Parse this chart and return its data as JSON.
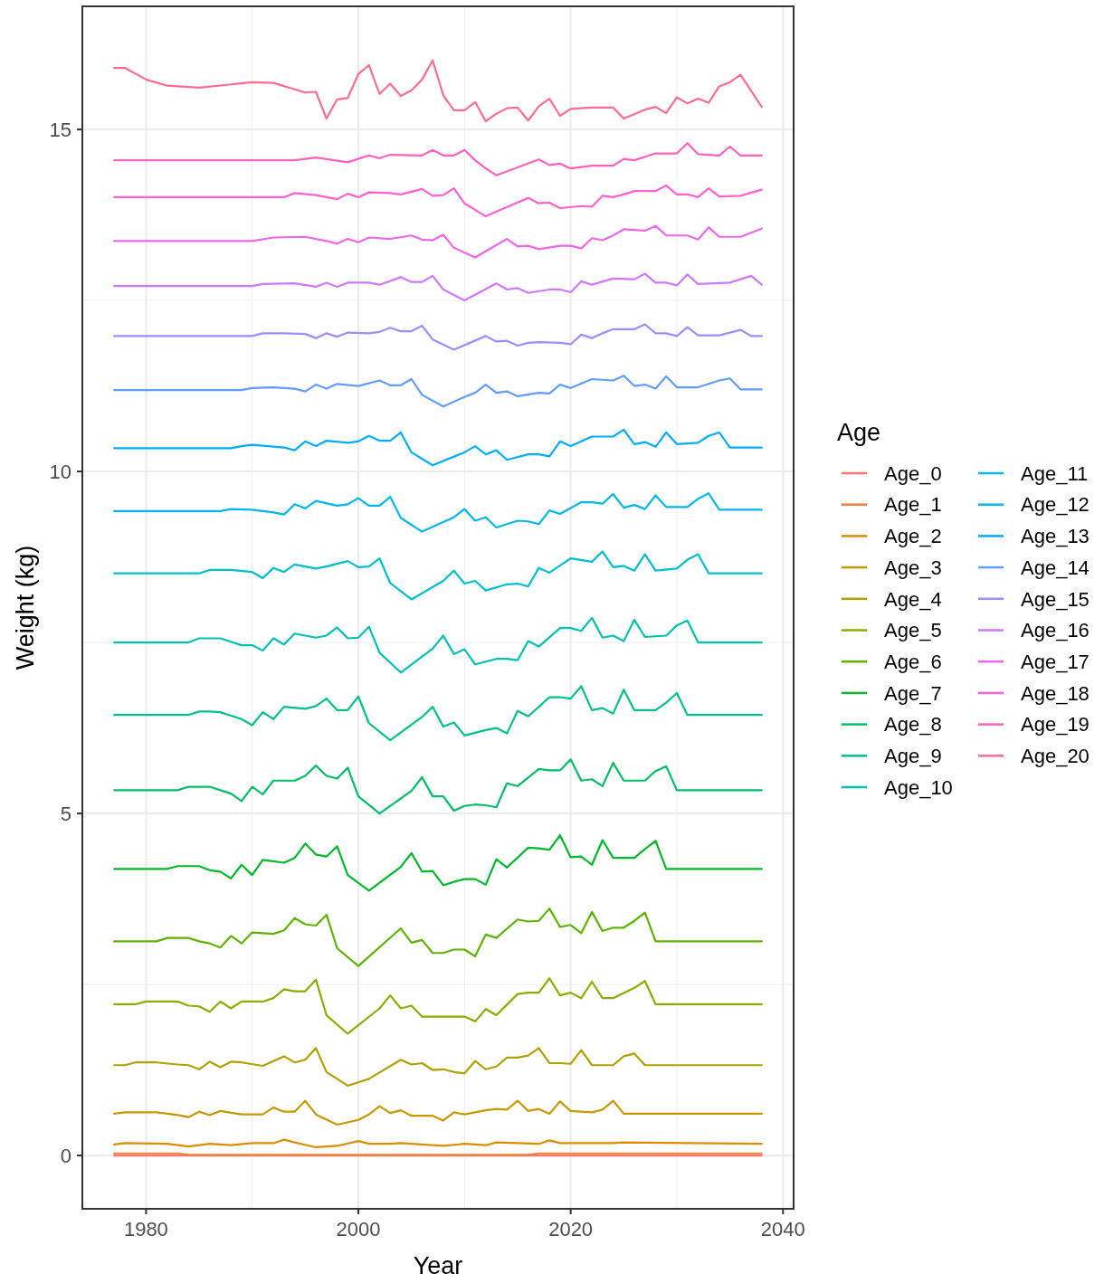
{
  "chart_data": {
    "type": "line",
    "xlabel": "Year",
    "ylabel": "Weight (kg)",
    "legend_title": "Age",
    "legend": "right",
    "grid": true,
    "xlim": [
      1974,
      2041
    ],
    "ylim": [
      -0.78,
      16.8
    ],
    "xticks": [
      1980,
      2000,
      2020,
      2040
    ],
    "yticks": [
      0,
      5,
      10,
      15
    ],
    "series": [
      {
        "name": "Age_0",
        "color": "#F8766D",
        "x": [
          1977,
          2038
        ],
        "values": [
          0,
          0
        ]
      },
      {
        "name": "Age_1",
        "color": "#EC823C",
        "x": [
          1977,
          1983,
          1984,
          2016,
          2017,
          2038
        ],
        "values": [
          0.03,
          0.03,
          0.01,
          0.01,
          0.03,
          0.03
        ]
      },
      {
        "name": "Age_2",
        "color": "#DC8D00",
        "x": [
          1977,
          1978,
          1982,
          1984,
          1986,
          1988,
          1990,
          1992,
          1993,
          1994,
          1996,
          1998,
          2000,
          2001,
          2003,
          2004,
          2006,
          2008,
          2010,
          2012,
          2013,
          2015,
          2017,
          2018,
          2019,
          2024,
          2025,
          2038
        ],
        "values": [
          0.16,
          0.18,
          0.17,
          0.13,
          0.17,
          0.15,
          0.18,
          0.18,
          0.23,
          0.19,
          0.12,
          0.14,
          0.21,
          0.17,
          0.17,
          0.18,
          0.16,
          0.14,
          0.17,
          0.15,
          0.19,
          0.18,
          0.17,
          0.22,
          0.18,
          0.18,
          0.19,
          0.17
        ]
      },
      {
        "name": "Age_3",
        "color": "#C89800",
        "x": [
          1977,
          1978,
          1981,
          1983,
          1984,
          1985,
          1986,
          1987,
          1989,
          1991,
          1992,
          1993,
          1994,
          1995,
          1996,
          1998,
          2000,
          2001,
          2002,
          2003,
          2004,
          2005,
          2007,
          2008,
          2009,
          2010,
          2012,
          2013,
          2014,
          2015,
          2016,
          2017,
          2018,
          2019,
          2020,
          2022,
          2023,
          2024,
          2025,
          2038
        ],
        "values": [
          0.61,
          0.63,
          0.63,
          0.59,
          0.56,
          0.64,
          0.59,
          0.65,
          0.6,
          0.6,
          0.7,
          0.64,
          0.64,
          0.8,
          0.6,
          0.45,
          0.52,
          0.6,
          0.72,
          0.62,
          0.66,
          0.58,
          0.58,
          0.51,
          0.63,
          0.6,
          0.66,
          0.68,
          0.67,
          0.8,
          0.65,
          0.68,
          0.61,
          0.79,
          0.65,
          0.63,
          0.67,
          0.8,
          0.61,
          0.61
        ]
      },
      {
        "name": "Age_4",
        "color": "#B0A100",
        "x": [
          1977,
          1978,
          1979,
          1981,
          1983,
          1984,
          1985,
          1986,
          1987,
          1988,
          1989,
          1991,
          1992,
          1993,
          1994,
          1995,
          1996,
          1997,
          1999,
          2001,
          2004,
          2005,
          2006,
          2007,
          2008,
          2009,
          2010,
          2011,
          2012,
          2013,
          2014,
          2015,
          2016,
          2017,
          2018,
          2019,
          2020,
          2021,
          2022,
          2024,
          2025,
          2026,
          2027,
          2038
        ],
        "values": [
          1.32,
          1.32,
          1.36,
          1.36,
          1.33,
          1.32,
          1.26,
          1.37,
          1.29,
          1.37,
          1.36,
          1.31,
          1.38,
          1.45,
          1.36,
          1.4,
          1.57,
          1.22,
          1.02,
          1.12,
          1.4,
          1.33,
          1.35,
          1.25,
          1.26,
          1.22,
          1.2,
          1.38,
          1.26,
          1.3,
          1.43,
          1.43,
          1.46,
          1.57,
          1.35,
          1.35,
          1.34,
          1.54,
          1.32,
          1.32,
          1.45,
          1.49,
          1.32,
          1.32
        ]
      },
      {
        "name": "Age_5",
        "color": "#8FAA00",
        "x": [
          1977,
          1979,
          1980,
          1983,
          1984,
          1985,
          1986,
          1987,
          1988,
          1989,
          1991,
          1992,
          1993,
          1994,
          1995,
          1996,
          1997,
          1999,
          2002,
          2003,
          2004,
          2005,
          2006,
          2010,
          2011,
          2012,
          2013,
          2015,
          2016,
          2017,
          2018,
          2019,
          2020,
          2021,
          2022,
          2023,
          2024,
          2026,
          2027,
          2028,
          2038
        ],
        "values": [
          2.21,
          2.21,
          2.25,
          2.25,
          2.19,
          2.18,
          2.1,
          2.25,
          2.15,
          2.25,
          2.25,
          2.3,
          2.43,
          2.4,
          2.4,
          2.57,
          2.05,
          1.78,
          2.15,
          2.34,
          2.15,
          2.19,
          2.03,
          2.03,
          1.96,
          2.14,
          2.05,
          2.36,
          2.38,
          2.38,
          2.59,
          2.34,
          2.38,
          2.3,
          2.54,
          2.3,
          2.3,
          2.45,
          2.55,
          2.21,
          2.21
        ]
      },
      {
        "name": "Age_6",
        "color": "#5EB300",
        "x": [
          1977,
          1981,
          1982,
          1984,
          1985,
          1986,
          1987,
          1988,
          1989,
          1990,
          1992,
          1993,
          1994,
          1995,
          1996,
          1997,
          1998,
          2000,
          2004,
          2005,
          2006,
          2007,
          2008,
          2009,
          2010,
          2011,
          2012,
          2013,
          2015,
          2016,
          2017,
          2018,
          2019,
          2020,
          2021,
          2022,
          2023,
          2024,
          2025,
          2026,
          2027,
          2028,
          2038
        ],
        "values": [
          3.13,
          3.13,
          3.18,
          3.18,
          3.13,
          3.1,
          3.04,
          3.21,
          3.1,
          3.26,
          3.24,
          3.29,
          3.47,
          3.38,
          3.36,
          3.52,
          3.03,
          2.77,
          3.32,
          3.11,
          3.15,
          2.96,
          2.96,
          3.01,
          3.01,
          2.91,
          3.23,
          3.18,
          3.45,
          3.42,
          3.43,
          3.61,
          3.34,
          3.37,
          3.25,
          3.56,
          3.28,
          3.33,
          3.33,
          3.43,
          3.55,
          3.13,
          3.13
        ]
      },
      {
        "name": "Age_7",
        "color": "#00B92A",
        "x": [
          1977,
          1982,
          1983,
          1985,
          1986,
          1987,
          1988,
          1989,
          1990,
          1991,
          1993,
          1994,
          1995,
          1996,
          1997,
          1998,
          1999,
          2001,
          2004,
          2005,
          2006,
          2007,
          2008,
          2009,
          2010,
          2011,
          2012,
          2013,
          2014,
          2016,
          2017,
          2018,
          2019,
          2020,
          2021,
          2022,
          2023,
          2024,
          2026,
          2027,
          2028,
          2029,
          2038
        ],
        "values": [
          4.19,
          4.19,
          4.23,
          4.23,
          4.17,
          4.15,
          4.05,
          4.25,
          4.1,
          4.32,
          4.28,
          4.35,
          4.56,
          4.4,
          4.37,
          4.52,
          4.1,
          3.87,
          4.22,
          4.42,
          4.15,
          4.16,
          3.95,
          4.0,
          4.04,
          4.04,
          3.96,
          4.33,
          4.21,
          4.5,
          4.49,
          4.47,
          4.68,
          4.36,
          4.37,
          4.25,
          4.61,
          4.35,
          4.35,
          4.48,
          4.6,
          4.19,
          4.19
        ]
      },
      {
        "name": "Age_8",
        "color": "#00BE67",
        "x": [
          1977,
          1983,
          1984,
          1986,
          1988,
          1989,
          1990,
          1991,
          1992,
          1994,
          1995,
          1996,
          1997,
          1998,
          1999,
          2000,
          2002,
          2005,
          2006,
          2007,
          2008,
          2009,
          2010,
          2011,
          2012,
          2013,
          2014,
          2015,
          2017,
          2018,
          2019,
          2020,
          2021,
          2022,
          2023,
          2024,
          2025,
          2027,
          2028,
          2029,
          2030,
          2038
        ],
        "values": [
          5.34,
          5.34,
          5.39,
          5.39,
          5.29,
          5.18,
          5.39,
          5.28,
          5.48,
          5.48,
          5.55,
          5.7,
          5.55,
          5.51,
          5.67,
          5.25,
          5.0,
          5.33,
          5.53,
          5.25,
          5.25,
          5.04,
          5.11,
          5.13,
          5.12,
          5.09,
          5.44,
          5.4,
          5.65,
          5.63,
          5.63,
          5.79,
          5.48,
          5.5,
          5.4,
          5.74,
          5.48,
          5.48,
          5.62,
          5.69,
          5.34,
          5.34
        ]
      },
      {
        "name": "Age_9",
        "color": "#00C08E",
        "x": [
          1977,
          1984,
          1985,
          1986,
          1987,
          1988,
          1989,
          1990,
          1991,
          1992,
          1993,
          1995,
          1996,
          1997,
          1998,
          1999,
          2000,
          2001,
          2003,
          2006,
          2007,
          2008,
          2009,
          2010,
          2012,
          2013,
          2014,
          2015,
          2016,
          2018,
          2019,
          2020,
          2021,
          2022,
          2023,
          2024,
          2025,
          2026,
          2028,
          2029,
          2030,
          2031,
          2038
        ],
        "values": [
          6.44,
          6.44,
          6.49,
          6.49,
          6.48,
          6.43,
          6.38,
          6.29,
          6.48,
          6.38,
          6.56,
          6.53,
          6.57,
          6.68,
          6.51,
          6.51,
          6.71,
          6.32,
          6.07,
          6.41,
          6.56,
          6.27,
          6.33,
          6.14,
          6.22,
          6.25,
          6.17,
          6.5,
          6.42,
          6.7,
          6.7,
          6.68,
          6.86,
          6.51,
          6.54,
          6.46,
          6.81,
          6.51,
          6.51,
          6.62,
          6.76,
          6.44,
          6.44
        ]
      },
      {
        "name": "Age_10",
        "color": "#00C1B0",
        "x": [
          1977,
          1984,
          1985,
          1987,
          1988,
          1989,
          1990,
          1991,
          1992,
          1993,
          1994,
          1996,
          1997,
          1998,
          1999,
          2000,
          2001,
          2002,
          2004,
          2007,
          2008,
          2009,
          2010,
          2011,
          2013,
          2014,
          2015,
          2016,
          2017,
          2019,
          2020,
          2021,
          2022,
          2023,
          2024,
          2025,
          2026,
          2027,
          2029,
          2030,
          2031,
          2032,
          2038
        ],
        "values": [
          7.5,
          7.5,
          7.56,
          7.56,
          7.51,
          7.46,
          7.46,
          7.38,
          7.56,
          7.47,
          7.63,
          7.57,
          7.6,
          7.72,
          7.56,
          7.57,
          7.73,
          7.35,
          7.06,
          7.41,
          7.6,
          7.33,
          7.4,
          7.18,
          7.26,
          7.26,
          7.24,
          7.52,
          7.44,
          7.71,
          7.71,
          7.67,
          7.86,
          7.57,
          7.6,
          7.52,
          7.83,
          7.58,
          7.6,
          7.75,
          7.82,
          7.5,
          7.5
        ]
      },
      {
        "name": "Age_11",
        "color": "#00BECF",
        "x": [
          1977,
          1985,
          1986,
          1988,
          1990,
          1991,
          1992,
          1993,
          1994,
          1996,
          1997,
          1999,
          2000,
          2001,
          2002,
          2003,
          2005,
          2008,
          2009,
          2010,
          2011,
          2012,
          2014,
          2015,
          2016,
          2017,
          2018,
          2020,
          2022,
          2023,
          2024,
          2025,
          2026,
          2027,
          2028,
          2030,
          2031,
          2032,
          2033,
          2038
        ],
        "values": [
          8.51,
          8.51,
          8.56,
          8.56,
          8.53,
          8.44,
          8.59,
          8.53,
          8.64,
          8.58,
          8.61,
          8.69,
          8.6,
          8.61,
          8.73,
          8.37,
          8.13,
          8.4,
          8.55,
          8.36,
          8.4,
          8.26,
          8.35,
          8.36,
          8.32,
          8.59,
          8.52,
          8.73,
          8.68,
          8.83,
          8.6,
          8.62,
          8.55,
          8.79,
          8.55,
          8.58,
          8.71,
          8.79,
          8.51,
          8.51
        ]
      },
      {
        "name": "Age_12",
        "color": "#00B8E7",
        "x": [
          1977,
          1987,
          1988,
          1990,
          1992,
          1993,
          1994,
          1995,
          1996,
          1998,
          1999,
          2000,
          2001,
          2002,
          2003,
          2004,
          2006,
          2009,
          2010,
          2011,
          2012,
          2013,
          2015,
          2016,
          2017,
          2018,
          2019,
          2021,
          2022,
          2023,
          2024,
          2025,
          2026,
          2027,
          2028,
          2029,
          2031,
          2032,
          2033,
          2034,
          2038
        ],
        "values": [
          9.42,
          9.42,
          9.45,
          9.44,
          9.4,
          9.37,
          9.52,
          9.46,
          9.57,
          9.5,
          9.52,
          9.61,
          9.5,
          9.5,
          9.63,
          9.32,
          9.12,
          9.33,
          9.45,
          9.28,
          9.33,
          9.18,
          9.28,
          9.27,
          9.23,
          9.43,
          9.38,
          9.55,
          9.55,
          9.53,
          9.67,
          9.47,
          9.51,
          9.45,
          9.65,
          9.48,
          9.48,
          9.6,
          9.68,
          9.44,
          9.44
        ]
      },
      {
        "name": "Age_13",
        "color": "#00ADFA",
        "x": [
          1977,
          1988,
          1989,
          1990,
          1993,
          1994,
          1995,
          1996,
          1997,
          1999,
          2000,
          2001,
          2002,
          2003,
          2004,
          2005,
          2007,
          2010,
          2011,
          2012,
          2013,
          2014,
          2016,
          2017,
          2018,
          2019,
          2020,
          2022,
          2024,
          2025,
          2026,
          2027,
          2028,
          2029,
          2030,
          2032,
          2033,
          2034,
          2035,
          2038
        ],
        "values": [
          10.34,
          10.34,
          10.37,
          10.39,
          10.35,
          10.31,
          10.44,
          10.37,
          10.45,
          10.42,
          10.44,
          10.52,
          10.45,
          10.45,
          10.57,
          10.28,
          10.09,
          10.28,
          10.37,
          10.25,
          10.31,
          10.17,
          10.25,
          10.25,
          10.22,
          10.44,
          10.37,
          10.51,
          10.51,
          10.61,
          10.4,
          10.43,
          10.36,
          10.57,
          10.4,
          10.42,
          10.52,
          10.57,
          10.35,
          10.35
        ]
      },
      {
        "name": "Age_14",
        "color": "#619CFF",
        "x": [
          1977,
          1989,
          1990,
          1992,
          1994,
          1995,
          1996,
          1997,
          1998,
          2000,
          2002,
          2003,
          2004,
          2005,
          2006,
          2008,
          2010,
          2011,
          2012,
          2013,
          2014,
          2015,
          2017,
          2018,
          2019,
          2020,
          2022,
          2024,
          2025,
          2026,
          2027,
          2028,
          2029,
          2030,
          2032,
          2034,
          2035,
          2036,
          2038
        ],
        "values": [
          11.19,
          11.19,
          11.22,
          11.23,
          11.21,
          11.17,
          11.27,
          11.21,
          11.28,
          11.25,
          11.33,
          11.26,
          11.26,
          11.35,
          11.12,
          10.95,
          11.09,
          11.15,
          11.27,
          11.15,
          11.17,
          11.1,
          11.15,
          11.14,
          11.27,
          11.22,
          11.35,
          11.33,
          11.4,
          11.25,
          11.27,
          11.21,
          11.39,
          11.23,
          11.23,
          11.33,
          11.36,
          11.2,
          11.2
        ]
      },
      {
        "name": "Age_15",
        "color": "#A58AFF",
        "x": [
          1977,
          1990,
          1991,
          1993,
          1995,
          1996,
          1997,
          1998,
          1999,
          2001,
          2002,
          2003,
          2004,
          2005,
          2006,
          2007,
          2009,
          2012,
          2013,
          2014,
          2015,
          2016,
          2017,
          2019,
          2020,
          2021,
          2022,
          2023,
          2024,
          2026,
          2027,
          2028,
          2029,
          2030,
          2031,
          2032,
          2034,
          2035,
          2036,
          2037,
          2038
        ],
        "values": [
          11.98,
          11.98,
          12.02,
          12.02,
          12.01,
          11.95,
          12.02,
          11.97,
          12.03,
          12.02,
          12.04,
          12.1,
          12.05,
          12.05,
          12.13,
          11.93,
          11.78,
          11.98,
          11.9,
          11.91,
          11.84,
          11.88,
          11.89,
          11.88,
          11.86,
          12.0,
          11.95,
          12.02,
          12.08,
          12.08,
          12.15,
          12.02,
          12.02,
          11.98,
          12.11,
          11.99,
          11.99,
          12.03,
          12.07,
          11.98,
          11.98
        ]
      },
      {
        "name": "Age_16",
        "color": "#D078FF",
        "x": [
          1977,
          1990,
          1991,
          1994,
          1996,
          1997,
          1998,
          1999,
          2001,
          2002,
          2004,
          2005,
          2006,
          2007,
          2008,
          2010,
          2013,
          2014,
          2015,
          2016,
          2018,
          2019,
          2020,
          2021,
          2022,
          2024,
          2026,
          2027,
          2028,
          2029,
          2030,
          2031,
          2032,
          2035,
          2037,
          2038
        ],
        "values": [
          12.71,
          12.71,
          12.74,
          12.75,
          12.7,
          12.76,
          12.7,
          12.76,
          12.76,
          12.73,
          12.84,
          12.77,
          12.77,
          12.86,
          12.66,
          12.5,
          12.75,
          12.66,
          12.68,
          12.61,
          12.66,
          12.66,
          12.62,
          12.78,
          12.73,
          12.82,
          12.81,
          12.89,
          12.76,
          12.76,
          12.72,
          12.88,
          12.74,
          12.76,
          12.86,
          12.73
        ]
      },
      {
        "name": "Age_17",
        "color": "#EE67EB",
        "x": [
          1977,
          1990,
          1992,
          1995,
          1997,
          1998,
          1999,
          2000,
          2001,
          2003,
          2005,
          2006,
          2007,
          2008,
          2009,
          2011,
          2014,
          2015,
          2016,
          2017,
          2019,
          2020,
          2021,
          2022,
          2023,
          2024,
          2025,
          2027,
          2028,
          2029,
          2031,
          2032,
          2033,
          2034,
          2036,
          2038
        ],
        "values": [
          13.37,
          13.37,
          13.42,
          13.43,
          13.37,
          13.33,
          13.4,
          13.35,
          13.42,
          13.4,
          13.45,
          13.39,
          13.38,
          13.46,
          13.27,
          13.13,
          13.4,
          13.29,
          13.3,
          13.25,
          13.3,
          13.3,
          13.26,
          13.41,
          13.38,
          13.45,
          13.54,
          13.52,
          13.59,
          13.45,
          13.45,
          13.39,
          13.57,
          13.43,
          13.43,
          13.55
        ]
      },
      {
        "name": "Age_18",
        "color": "#FD61D2",
        "x": [
          1977,
          1993,
          1994,
          1996,
          1998,
          1999,
          2000,
          2001,
          2003,
          2004,
          2006,
          2007,
          2008,
          2009,
          2010,
          2012,
          2016,
          2017,
          2018,
          2019,
          2021,
          2022,
          2023,
          2024,
          2025,
          2026,
          2028,
          2029,
          2030,
          2031,
          2032,
          2033,
          2034,
          2036,
          2038
        ],
        "values": [
          14.01,
          14.01,
          14.07,
          14.04,
          13.98,
          14.06,
          14.01,
          14.08,
          14.07,
          14.05,
          14.13,
          14.03,
          14.04,
          14.14,
          13.92,
          13.73,
          14.0,
          13.92,
          13.93,
          13.85,
          13.88,
          13.87,
          14.03,
          14.01,
          14.05,
          14.1,
          14.1,
          14.18,
          14.05,
          14.05,
          14.01,
          14.14,
          14.02,
          14.03,
          14.12
        ]
      },
      {
        "name": "Age_19",
        "color": "#FF62BC",
        "x": [
          1977,
          1994,
          1996,
          1999,
          2001,
          2002,
          2003,
          2006,
          2007,
          2008,
          2009,
          2010,
          2011,
          2012,
          2013,
          2017,
          2018,
          2019,
          2020,
          2022,
          2024,
          2025,
          2026,
          2028,
          2030,
          2031,
          2032,
          2034,
          2035,
          2036,
          2038
        ],
        "values": [
          14.55,
          14.55,
          14.59,
          14.52,
          14.62,
          14.58,
          14.63,
          14.62,
          14.7,
          14.62,
          14.62,
          14.7,
          14.55,
          14.43,
          14.33,
          14.56,
          14.48,
          14.5,
          14.43,
          14.47,
          14.47,
          14.57,
          14.55,
          14.65,
          14.65,
          14.8,
          14.64,
          14.62,
          14.75,
          14.62,
          14.62
        ]
      },
      {
        "name": "Age_20",
        "color": "#FF6C91",
        "x": [
          1977,
          1978,
          1980,
          1982,
          1985,
          1990,
          1992,
          1995,
          1996,
          1997,
          1998,
          1999,
          2000,
          2001,
          2002,
          2003,
          2004,
          2005,
          2006,
          2007,
          2008,
          2009,
          2010,
          2011,
          2012,
          2013,
          2014,
          2015,
          2016,
          2017,
          2018,
          2019,
          2020,
          2022,
          2024,
          2025,
          2027,
          2028,
          2029,
          2030,
          2031,
          2032,
          2033,
          2034,
          2035,
          2036,
          2038
        ],
        "values": [
          15.9,
          15.9,
          15.73,
          15.64,
          15.61,
          15.69,
          15.68,
          15.54,
          15.55,
          15.16,
          15.44,
          15.46,
          15.81,
          15.94,
          15.52,
          15.67,
          15.49,
          15.57,
          15.73,
          16.01,
          15.5,
          15.28,
          15.28,
          15.4,
          15.12,
          15.23,
          15.31,
          15.32,
          15.13,
          15.34,
          15.45,
          15.2,
          15.3,
          15.32,
          15.32,
          15.16,
          15.29,
          15.33,
          15.24,
          15.47,
          15.38,
          15.45,
          15.39,
          15.63,
          15.69,
          15.8,
          15.33
        ]
      }
    ]
  }
}
